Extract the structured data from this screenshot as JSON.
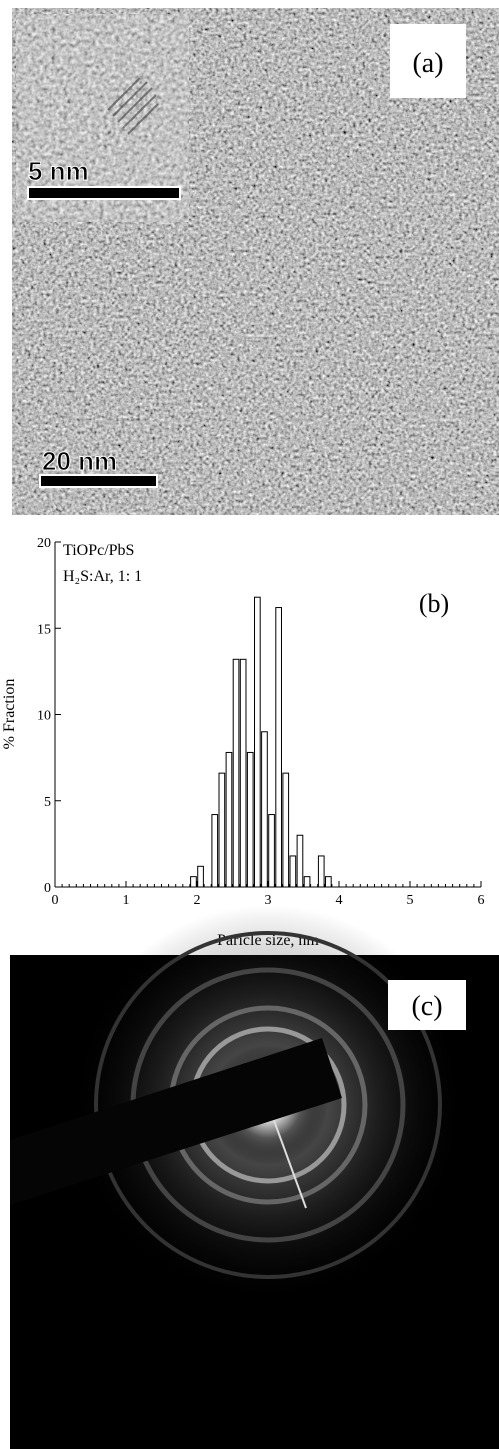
{
  "panel_a": {
    "label": "(a)",
    "inset_scale": "5 nm",
    "scale": "20 nm"
  },
  "chart_data": {
    "type": "histogram",
    "label": "(b)",
    "annotations": [
      "TiOPc/PbS",
      "H₂S:Ar, 1: 1"
    ],
    "x_label": "Paricle size, nm",
    "y_label": "% Fraction",
    "bins": [
      1.9,
      2.0,
      2.1,
      2.2,
      2.3,
      2.4,
      2.5,
      2.6,
      2.7,
      2.8,
      2.9,
      3.0,
      3.1,
      3.2,
      3.3,
      3.4,
      3.5,
      3.6,
      3.7,
      3.8,
      3.9
    ],
    "values": [
      0.6,
      1.2,
      0,
      4.2,
      6.6,
      7.8,
      13.2,
      13.2,
      7.8,
      16.8,
      9.0,
      4.2,
      16.2,
      6.6,
      1.8,
      3.0,
      0.6,
      0,
      1.8,
      0.6
    ],
    "color": "#ffffff",
    "xlim": [
      0,
      6
    ],
    "xticks": [
      0,
      1,
      2,
      3,
      4,
      5,
      6
    ],
    "ylim": [
      0,
      20
    ],
    "yticks": [
      0,
      5,
      10,
      15,
      20
    ]
  },
  "panel_c": {
    "label": "(c)"
  }
}
